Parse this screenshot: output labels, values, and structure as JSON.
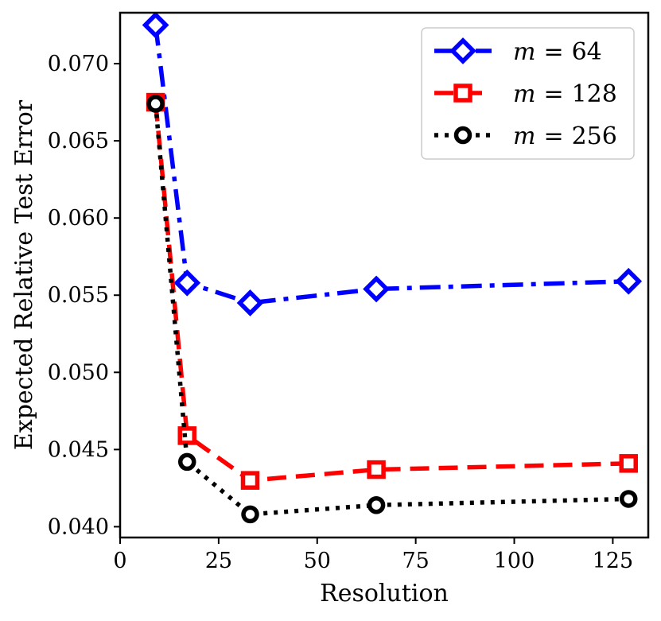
{
  "chart_data": {
    "type": "line",
    "title": "",
    "xlabel": "Resolution",
    "ylabel": "Expected Relative Test Error",
    "xlim": [
      0,
      134
    ],
    "ylim": [
      0.0393,
      0.0733
    ],
    "xticks": [
      0,
      25,
      50,
      75,
      100,
      125
    ],
    "xtick_labels": [
      "0",
      "25",
      "50",
      "75",
      "100",
      "125"
    ],
    "yticks": [
      0.04,
      0.045,
      0.05,
      0.055,
      0.06,
      0.065,
      0.07
    ],
    "ytick_labels": [
      "0.040",
      "0.045",
      "0.050",
      "0.055",
      "0.060",
      "0.065",
      "0.070"
    ],
    "grid": false,
    "legend_position": "top-right",
    "x": [
      9,
      17,
      33,
      65,
      129
    ],
    "series": [
      {
        "name": "m = 64",
        "legend_var": "m",
        "legend_eq": "=",
        "legend_num": "64",
        "color": "#0000ff",
        "marker": "diamond",
        "linestyle": "dashdot",
        "values": [
          0.0725,
          0.0558,
          0.0545,
          0.0554,
          0.0559
        ]
      },
      {
        "name": "m = 128",
        "legend_var": "m",
        "legend_eq": "=",
        "legend_num": "128",
        "color": "#ff0000",
        "marker": "square",
        "linestyle": "dashed",
        "values": [
          0.0675,
          0.0459,
          0.043,
          0.0437,
          0.0441
        ]
      },
      {
        "name": "m = 256",
        "legend_var": "m",
        "legend_eq": "=",
        "legend_num": "256",
        "color": "#000000",
        "marker": "circle",
        "linestyle": "dotted",
        "values": [
          0.0674,
          0.0442,
          0.0408,
          0.0414,
          0.0418
        ]
      }
    ]
  }
}
